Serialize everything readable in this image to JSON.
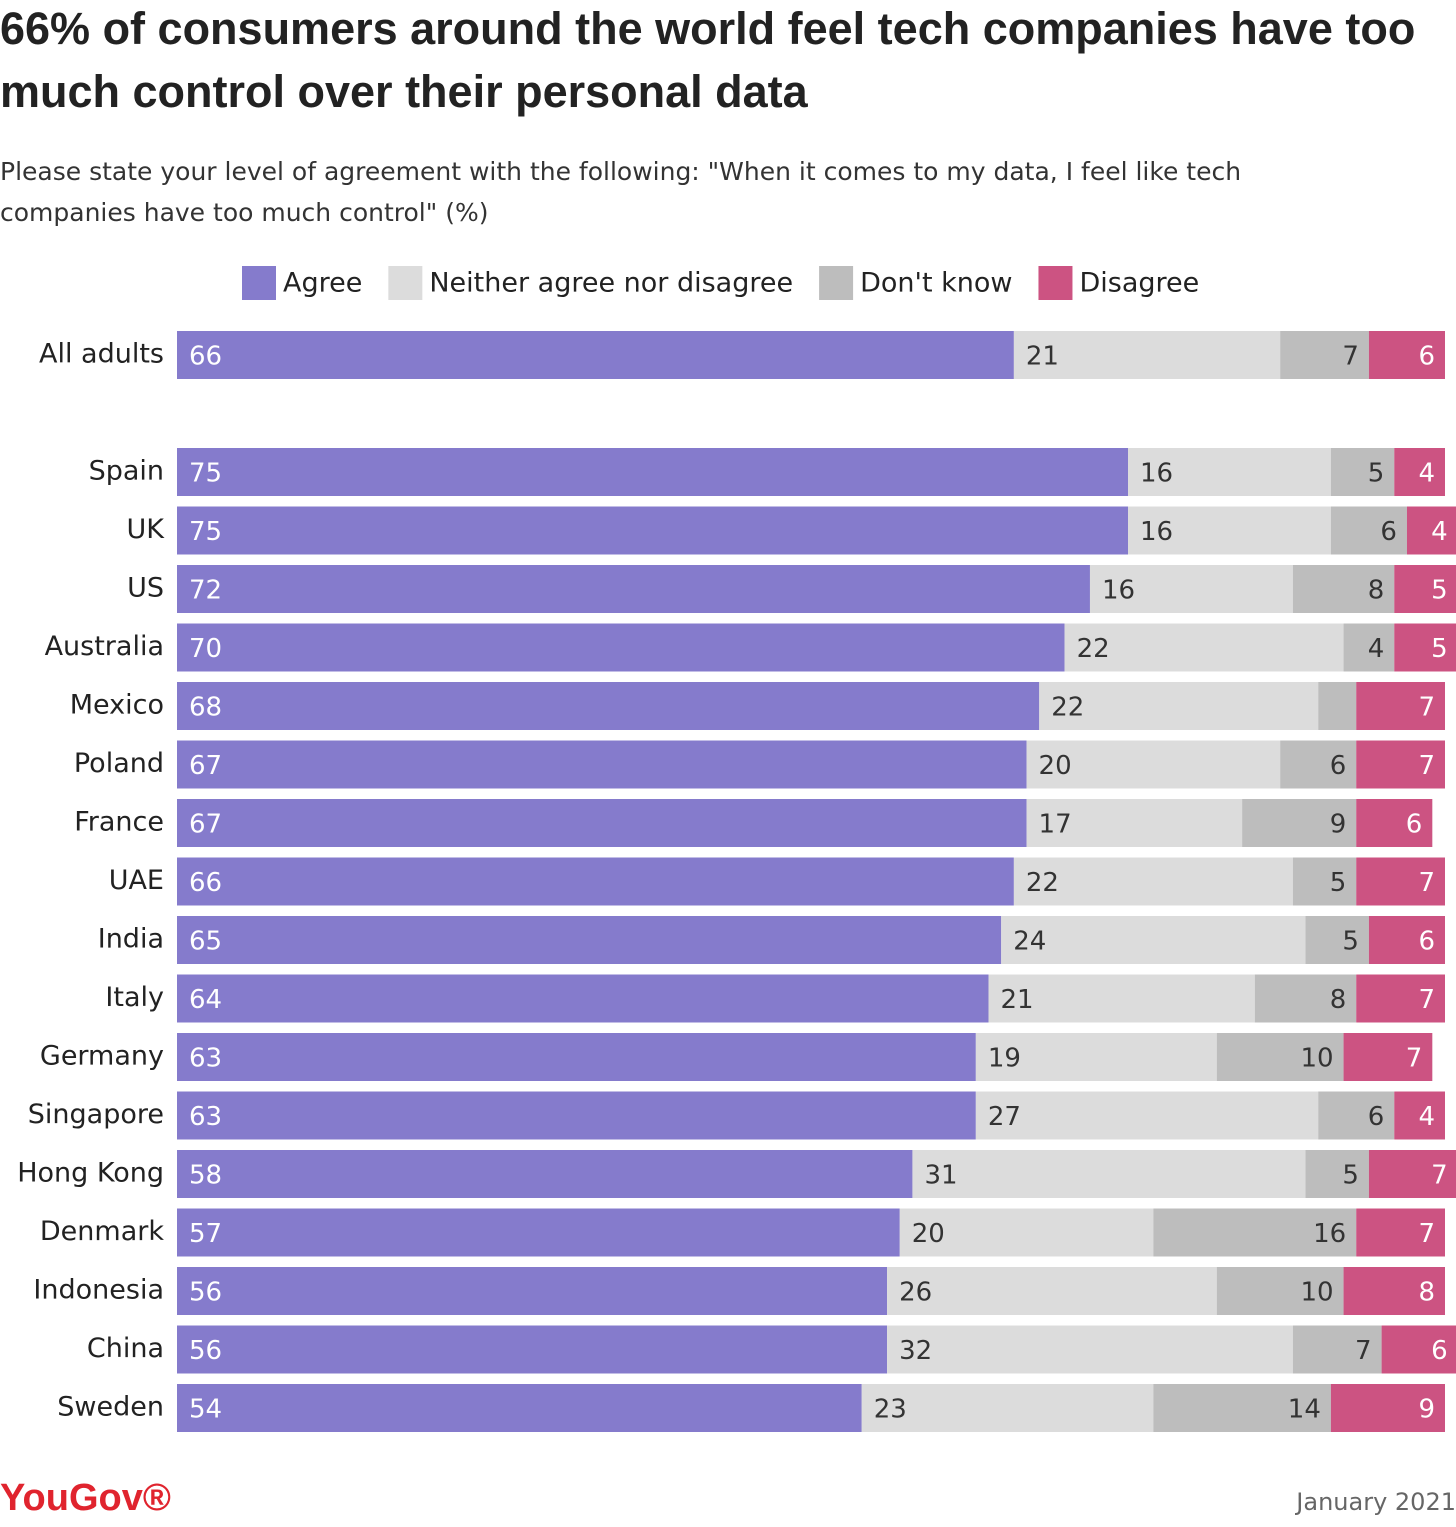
{
  "chart_data": {
    "type": "stacked-bar",
    "title": "66% of consumers around the world feel tech companies have too much control over their personal data",
    "subtitle": "Please state your level of agreement with the following: \"When it comes to my data, I feel like tech companies have too much control\" (%)",
    "categories": [
      "All adults",
      "Spain",
      "UK",
      "US",
      "Australia",
      "Mexico",
      "Poland",
      "France",
      "UAE",
      "India",
      "Italy",
      "Germany",
      "Singapore",
      "Hong Kong",
      "Denmark",
      "Indonesia",
      "China",
      "Sweden"
    ],
    "series": [
      {
        "name": "Agree",
        "color": "#857bcc",
        "values": [
          66,
          75,
          75,
          72,
          70,
          68,
          67,
          67,
          66,
          65,
          64,
          63,
          63,
          58,
          57,
          56,
          56,
          54
        ]
      },
      {
        "name": "Neither agree nor disagree",
        "color": "#dcdcdc",
        "values": [
          21,
          16,
          16,
          16,
          22,
          22,
          20,
          17,
          22,
          24,
          21,
          19,
          27,
          31,
          20,
          26,
          32,
          23
        ]
      },
      {
        "name": "Don't know",
        "color": "#bdbdbd",
        "values": [
          7,
          5,
          6,
          8,
          4,
          3,
          6,
          9,
          5,
          5,
          8,
          10,
          6,
          5,
          16,
          10,
          7,
          14
        ],
        "value_labels": [
          "7",
          "5",
          "6",
          "8",
          "4",
          null,
          "6",
          "9",
          "5",
          "5",
          "8",
          "10",
          "6",
          "5",
          "16",
          "10",
          "7",
          "14"
        ]
      },
      {
        "name": "Disagree",
        "color": "#cc5382",
        "values": [
          6,
          4,
          4,
          5,
          5,
          7,
          7,
          6,
          7,
          6,
          7,
          7,
          4,
          7,
          7,
          8,
          6,
          9
        ]
      }
    ],
    "xlim": [
      0,
      100
    ],
    "source": "YouGov®",
    "date": "January 2021"
  }
}
